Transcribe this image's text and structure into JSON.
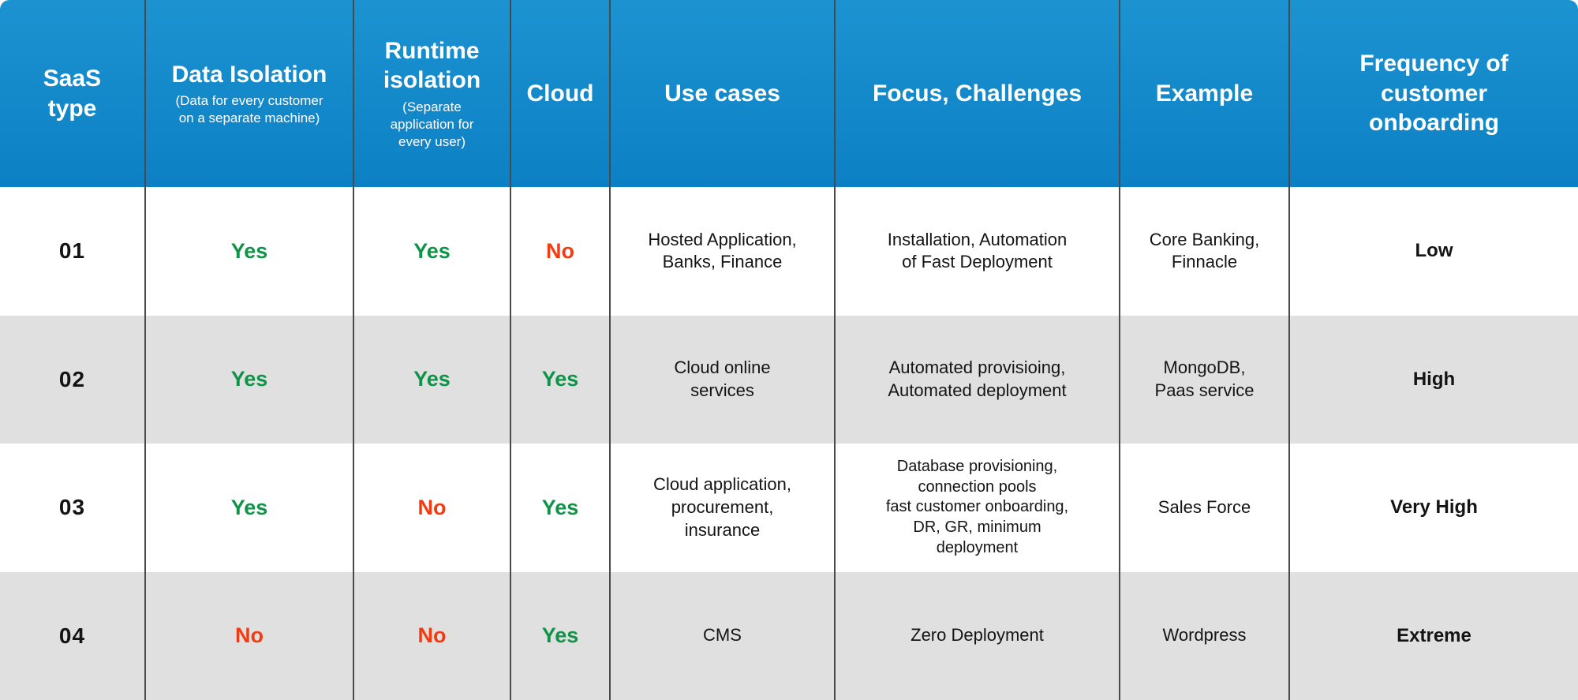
{
  "chart_data": {
    "type": "table",
    "columns": [
      {
        "label": "SaaS\ntype"
      },
      {
        "label": "Data Isolation",
        "sublabel": "(Data for every customer\non a separate machine)"
      },
      {
        "label": "Runtime\nisolation",
        "sublabel": "(Separate\napplication for\nevery user)"
      },
      {
        "label": "Cloud"
      },
      {
        "label": "Use cases"
      },
      {
        "label": "Focus, Challenges"
      },
      {
        "label": "Example"
      },
      {
        "label": "Frequency of\ncustomer\nonboarding"
      }
    ],
    "rows": [
      {
        "id": "01",
        "data_isolation": "Yes",
        "runtime_isolation": "Yes",
        "cloud": "No",
        "use_cases": "Hosted Application,\nBanks, Finance",
        "focus_challenges": "Installation, Automation\nof Fast Deployment",
        "example": "Core Banking,\nFinnacle",
        "onboarding_frequency": "Low"
      },
      {
        "id": "02",
        "data_isolation": "Yes",
        "runtime_isolation": "Yes",
        "cloud": "Yes",
        "use_cases": "Cloud online\nservices",
        "focus_challenges": "Automated provisioing,\nAutomated deployment",
        "example": "MongoDB,\nPaas service",
        "onboarding_frequency": "High"
      },
      {
        "id": "03",
        "data_isolation": "Yes",
        "runtime_isolation": "No",
        "cloud": "Yes",
        "use_cases": "Cloud application,\nprocurement,\ninsurance",
        "focus_challenges": "Database provisioning,\nconnection pools\nfast customer onboarding,\nDR, GR, minimum\ndeployment",
        "example": "Sales Force",
        "onboarding_frequency": "Very High"
      },
      {
        "id": "04",
        "data_isolation": "No",
        "runtime_isolation": "No",
        "cloud": "Yes",
        "use_cases": "CMS",
        "focus_challenges": "Zero Deployment",
        "example": "Wordpress",
        "onboarding_frequency": "Extreme"
      }
    ]
  },
  "colors": {
    "header_blue_top": "#1C93D1",
    "header_blue_bottom": "#0C80C4",
    "yes_green": "#0E9347",
    "no_red": "#F33B12",
    "row_gray": "#E0E0E0",
    "row_white": "#FFFFFF",
    "divider": "#4A4A4A",
    "body_text": "#141414"
  }
}
